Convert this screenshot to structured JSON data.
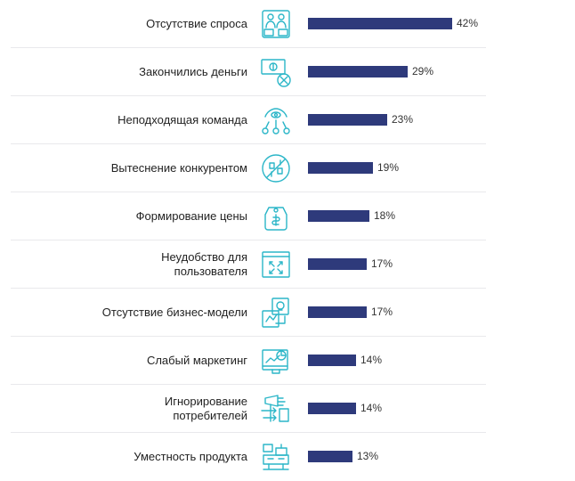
{
  "chart_data": {
    "type": "bar",
    "orientation": "horizontal",
    "categories": [
      "Отсутствие спроса",
      "Закончились деньги",
      "Неподходящая команда",
      "Вытеснение конкурентом",
      "Формирование цены",
      "Неудобство для пользователя",
      "Отсутствие бизнес-модели",
      "Слабый маркетинг",
      "Игнорирование потребителей",
      "Уместность продукта"
    ],
    "category_lines": [
      [
        "Отсутствие спроса"
      ],
      [
        "Закончились деньги"
      ],
      [
        "Неподходящая команда"
      ],
      [
        "Вытеснение конкурентом"
      ],
      [
        "Формирование цены"
      ],
      [
        "Неудобство для",
        "пользователя"
      ],
      [
        "Отсутствие бизнес-модели"
      ],
      [
        "Слабый маркетинг"
      ],
      [
        "Игнорирование",
        "потребителей"
      ],
      [
        "Уместность продукта"
      ]
    ],
    "values": [
      42,
      29,
      23,
      19,
      18,
      17,
      17,
      14,
      14,
      13
    ],
    "value_labels": [
      "42%",
      "29%",
      "23%",
      "19%",
      "18%",
      "17%",
      "17%",
      "14%",
      "14%",
      "13%"
    ],
    "icons": [
      "people-icon",
      "money-icon",
      "team-icon",
      "competition-icon",
      "price-tag-icon",
      "window-expand-icon",
      "business-model-icon",
      "marketing-icon",
      "megaphone-icon",
      "product-boxes-icon"
    ],
    "title": "",
    "xlabel": "",
    "ylabel": "",
    "xlim": [
      0,
      42
    ],
    "grid": false,
    "bar_color": "#2e3a7b",
    "icon_color": "#2bb6c8"
  }
}
